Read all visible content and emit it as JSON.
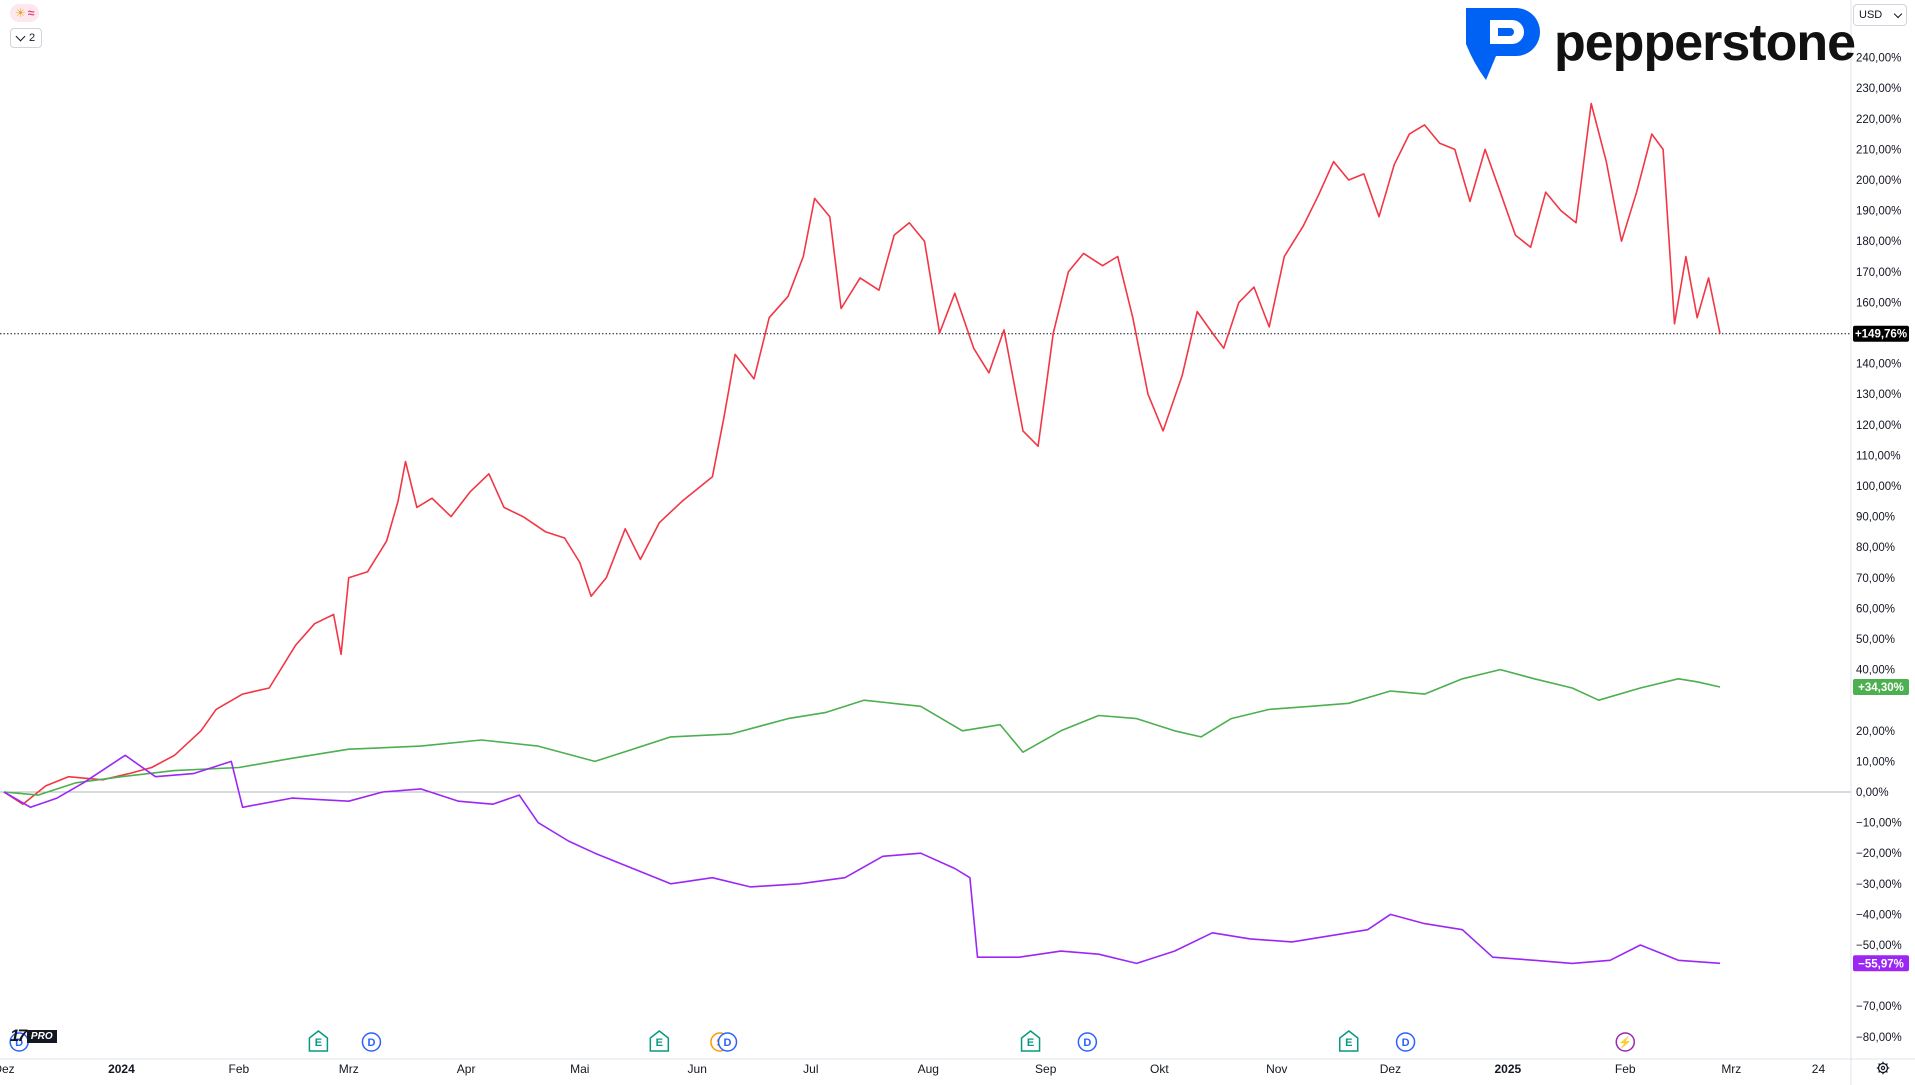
{
  "header": {
    "indicator_badge_sun": "☀",
    "indicator_badge_wave": "≈",
    "collapse_count": "2",
    "brand": "pepperstone",
    "currency": "USD"
  },
  "footer": {
    "tv_mark": "17",
    "tv_pro": "PRO"
  },
  "colors": {
    "red": "#f23645",
    "green": "#4caf50",
    "purple": "#9c27f5",
    "grid": "#b2b5be",
    "dotted": "#131722",
    "brand_blue": "#0062f5"
  },
  "chart_data": {
    "type": "line",
    "y_unit": "%",
    "ylim": [
      -85,
      250
    ],
    "y_ticks": [
      {
        "v": 240,
        "label": "240,00%"
      },
      {
        "v": 230,
        "label": "230,00%"
      },
      {
        "v": 220,
        "label": "220,00%"
      },
      {
        "v": 210,
        "label": "210,00%"
      },
      {
        "v": 200,
        "label": "200,00%"
      },
      {
        "v": 190,
        "label": "190,00%"
      },
      {
        "v": 180,
        "label": "180,00%"
      },
      {
        "v": 170,
        "label": "170,00%"
      },
      {
        "v": 160,
        "label": "160,00%"
      },
      {
        "v": 140,
        "label": "140,00%"
      },
      {
        "v": 130,
        "label": "130,00%"
      },
      {
        "v": 120,
        "label": "120,00%"
      },
      {
        "v": 110,
        "label": "110,00%"
      },
      {
        "v": 100,
        "label": "100,00%"
      },
      {
        "v": 90,
        "label": "90,00%"
      },
      {
        "v": 80,
        "label": "80,00%"
      },
      {
        "v": 70,
        "label": "70,00%"
      },
      {
        "v": 60,
        "label": "60,00%"
      },
      {
        "v": 50,
        "label": "50,00%"
      },
      {
        "v": 40,
        "label": "40,00%"
      },
      {
        "v": 20,
        "label": "20,00%"
      },
      {
        "v": 10,
        "label": "10,00%"
      },
      {
        "v": 0,
        "label": "0,00%"
      },
      {
        "v": -10,
        "label": "−10,00%"
      },
      {
        "v": -20,
        "label": "−20,00%"
      },
      {
        "v": -30,
        "label": "−30,00%"
      },
      {
        "v": -40,
        "label": "−40,00%"
      },
      {
        "v": -50,
        "label": "−50,00%"
      },
      {
        "v": -70,
        "label": "−70,00%"
      },
      {
        "v": -80,
        "label": "−80,00%"
      }
    ],
    "x_range": [
      "2023-12-01",
      "2025-03-28"
    ],
    "x_ticks": [
      {
        "date": "2023-12-01",
        "label": "Dez",
        "bold": false
      },
      {
        "date": "2024-01-01",
        "label": "2024",
        "bold": true
      },
      {
        "date": "2024-02-01",
        "label": "Feb",
        "bold": false
      },
      {
        "date": "2024-03-01",
        "label": "Mrz",
        "bold": false
      },
      {
        "date": "2024-04-01",
        "label": "Apr",
        "bold": false
      },
      {
        "date": "2024-05-01",
        "label": "Mai",
        "bold": false
      },
      {
        "date": "2024-06-01",
        "label": "Jun",
        "bold": false
      },
      {
        "date": "2024-07-01",
        "label": "Jul",
        "bold": false
      },
      {
        "date": "2024-08-01",
        "label": "Aug",
        "bold": false
      },
      {
        "date": "2024-09-01",
        "label": "Sep",
        "bold": false
      },
      {
        "date": "2024-10-01",
        "label": "Okt",
        "bold": false
      },
      {
        "date": "2024-11-01",
        "label": "Nov",
        "bold": false
      },
      {
        "date": "2024-12-01",
        "label": "Dez",
        "bold": false
      },
      {
        "date": "2025-01-01",
        "label": "2025",
        "bold": true
      },
      {
        "date": "2025-02-01",
        "label": "Feb",
        "bold": false
      },
      {
        "date": "2025-03-01",
        "label": "Mrz",
        "bold": false
      },
      {
        "date": "2025-03-24",
        "label": "24",
        "bold": false
      }
    ],
    "events": [
      {
        "date": "2023-12-05",
        "letter": "D",
        "color": "#2962ff"
      },
      {
        "date": "2024-02-22",
        "letter": "E",
        "color": "#089981"
      },
      {
        "date": "2024-03-07",
        "letter": "D",
        "color": "#2962ff"
      },
      {
        "date": "2024-05-22",
        "letter": "E",
        "color": "#089981"
      },
      {
        "date": "2024-06-07",
        "letter": "S",
        "color": "#ff9800"
      },
      {
        "date": "2024-06-09",
        "letter": "D",
        "color": "#2962ff"
      },
      {
        "date": "2024-08-28",
        "letter": "E",
        "color": "#089981"
      },
      {
        "date": "2024-09-12",
        "letter": "D",
        "color": "#2962ff"
      },
      {
        "date": "2024-11-20",
        "letter": "E",
        "color": "#089981"
      },
      {
        "date": "2024-12-05",
        "letter": "D",
        "color": "#2962ff"
      },
      {
        "date": "2025-02-01",
        "letter": "⚡",
        "color": "#9c27b0"
      }
    ],
    "last_value_dotted": 149.76,
    "series": [
      {
        "color": "#f23645",
        "last_label": "+149,76%",
        "points": [
          [
            "2023-12-01",
            0
          ],
          [
            "2023-12-06",
            -4
          ],
          [
            "2023-12-12",
            2
          ],
          [
            "2023-12-18",
            5
          ],
          [
            "2023-12-27",
            4
          ],
          [
            "2024-01-03",
            6
          ],
          [
            "2024-01-09",
            8
          ],
          [
            "2024-01-15",
            12
          ],
          [
            "2024-01-22",
            20
          ],
          [
            "2024-01-26",
            27
          ],
          [
            "2024-02-02",
            32
          ],
          [
            "2024-02-09",
            34
          ],
          [
            "2024-02-16",
            48
          ],
          [
            "2024-02-21",
            55
          ],
          [
            "2024-02-26",
            58
          ],
          [
            "2024-02-28",
            45
          ],
          [
            "2024-03-01",
            70
          ],
          [
            "2024-03-06",
            72
          ],
          [
            "2024-03-11",
            82
          ],
          [
            "2024-03-14",
            95
          ],
          [
            "2024-03-16",
            108
          ],
          [
            "2024-03-19",
            93
          ],
          [
            "2024-03-23",
            96
          ],
          [
            "2024-03-28",
            90
          ],
          [
            "2024-04-02",
            98
          ],
          [
            "2024-04-07",
            104
          ],
          [
            "2024-04-11",
            93
          ],
          [
            "2024-04-16",
            90
          ],
          [
            "2024-04-22",
            85
          ],
          [
            "2024-04-27",
            83
          ],
          [
            "2024-05-01",
            75
          ],
          [
            "2024-05-04",
            64
          ],
          [
            "2024-05-08",
            70
          ],
          [
            "2024-05-13",
            86
          ],
          [
            "2024-05-17",
            76
          ],
          [
            "2024-05-22",
            88
          ],
          [
            "2024-05-28",
            95
          ],
          [
            "2024-06-02",
            100
          ],
          [
            "2024-06-05",
            103
          ],
          [
            "2024-06-08",
            122
          ],
          [
            "2024-06-11",
            143
          ],
          [
            "2024-06-16",
            135
          ],
          [
            "2024-06-20",
            155
          ],
          [
            "2024-06-25",
            162
          ],
          [
            "2024-06-29",
            175
          ],
          [
            "2024-07-02",
            194
          ],
          [
            "2024-07-06",
            188
          ],
          [
            "2024-07-09",
            158
          ],
          [
            "2024-07-14",
            168
          ],
          [
            "2024-07-19",
            164
          ],
          [
            "2024-07-23",
            182
          ],
          [
            "2024-07-27",
            186
          ],
          [
            "2024-07-31",
            180
          ],
          [
            "2024-08-04",
            150
          ],
          [
            "2024-08-08",
            163
          ],
          [
            "2024-08-13",
            145
          ],
          [
            "2024-08-17",
            137
          ],
          [
            "2024-08-21",
            151
          ],
          [
            "2024-08-26",
            118
          ],
          [
            "2024-08-30",
            113
          ],
          [
            "2024-09-03",
            150
          ],
          [
            "2024-09-07",
            170
          ],
          [
            "2024-09-11",
            176
          ],
          [
            "2024-09-16",
            172
          ],
          [
            "2024-09-20",
            175
          ],
          [
            "2024-09-24",
            155
          ],
          [
            "2024-09-28",
            130
          ],
          [
            "2024-10-02",
            118
          ],
          [
            "2024-10-07",
            136
          ],
          [
            "2024-10-11",
            157
          ],
          [
            "2024-10-15",
            150
          ],
          [
            "2024-10-18",
            145
          ],
          [
            "2024-10-22",
            160
          ],
          [
            "2024-10-26",
            165
          ],
          [
            "2024-10-30",
            152
          ],
          [
            "2024-11-03",
            175
          ],
          [
            "2024-11-08",
            185
          ],
          [
            "2024-11-12",
            195
          ],
          [
            "2024-11-16",
            206
          ],
          [
            "2024-11-20",
            200
          ],
          [
            "2024-11-24",
            202
          ],
          [
            "2024-11-28",
            188
          ],
          [
            "2024-12-02",
            205
          ],
          [
            "2024-12-06",
            215
          ],
          [
            "2024-12-10",
            218
          ],
          [
            "2024-12-14",
            212
          ],
          [
            "2024-12-18",
            210
          ],
          [
            "2024-12-22",
            193
          ],
          [
            "2024-12-26",
            210
          ],
          [
            "2024-12-30",
            196
          ],
          [
            "2025-01-03",
            182
          ],
          [
            "2025-01-07",
            178
          ],
          [
            "2025-01-11",
            196
          ],
          [
            "2025-01-15",
            190
          ],
          [
            "2025-01-19",
            186
          ],
          [
            "2025-01-23",
            225
          ],
          [
            "2025-01-27",
            206
          ],
          [
            "2025-01-31",
            180
          ],
          [
            "2025-02-04",
            196
          ],
          [
            "2025-02-08",
            215
          ],
          [
            "2025-02-11",
            210
          ],
          [
            "2025-02-14",
            153
          ],
          [
            "2025-02-17",
            175
          ],
          [
            "2025-02-20",
            155
          ],
          [
            "2025-02-23",
            168
          ],
          [
            "2025-02-26",
            149.76
          ]
        ]
      },
      {
        "color": "#4caf50",
        "last_label": "+34,30%",
        "points": [
          [
            "2023-12-01",
            0
          ],
          [
            "2023-12-10",
            -1
          ],
          [
            "2023-12-20",
            3
          ],
          [
            "2024-01-01",
            5
          ],
          [
            "2024-01-15",
            7
          ],
          [
            "2024-02-01",
            8
          ],
          [
            "2024-02-15",
            11
          ],
          [
            "2024-03-01",
            14
          ],
          [
            "2024-03-20",
            15
          ],
          [
            "2024-04-05",
            17
          ],
          [
            "2024-04-20",
            15
          ],
          [
            "2024-05-05",
            10
          ],
          [
            "2024-05-15",
            14
          ],
          [
            "2024-05-25",
            18
          ],
          [
            "2024-06-10",
            19
          ],
          [
            "2024-06-25",
            24
          ],
          [
            "2024-07-05",
            26
          ],
          [
            "2024-07-15",
            30
          ],
          [
            "2024-07-30",
            28
          ],
          [
            "2024-08-10",
            20
          ],
          [
            "2024-08-20",
            22
          ],
          [
            "2024-08-26",
            13
          ],
          [
            "2024-09-05",
            20
          ],
          [
            "2024-09-15",
            25
          ],
          [
            "2024-09-25",
            24
          ],
          [
            "2024-10-05",
            20
          ],
          [
            "2024-10-12",
            18
          ],
          [
            "2024-10-20",
            24
          ],
          [
            "2024-10-30",
            27
          ],
          [
            "2024-11-10",
            28
          ],
          [
            "2024-11-20",
            29
          ],
          [
            "2024-12-01",
            33
          ],
          [
            "2024-12-10",
            32
          ],
          [
            "2024-12-20",
            37
          ],
          [
            "2024-12-30",
            40
          ],
          [
            "2025-01-08",
            37
          ],
          [
            "2025-01-18",
            34
          ],
          [
            "2025-01-25",
            30
          ],
          [
            "2025-02-05",
            34
          ],
          [
            "2025-02-15",
            37
          ],
          [
            "2025-02-20",
            36
          ],
          [
            "2025-02-26",
            34.3
          ]
        ]
      },
      {
        "color": "#9c27f5",
        "last_label": "−55,97%",
        "points": [
          [
            "2023-12-01",
            0
          ],
          [
            "2023-12-08",
            -5
          ],
          [
            "2023-12-15",
            -2
          ],
          [
            "2023-12-22",
            3
          ],
          [
            "2024-01-02",
            12
          ],
          [
            "2024-01-10",
            5
          ],
          [
            "2024-01-20",
            6
          ],
          [
            "2024-01-30",
            10
          ],
          [
            "2024-02-02",
            -5
          ],
          [
            "2024-02-15",
            -2
          ],
          [
            "2024-03-01",
            -3
          ],
          [
            "2024-03-10",
            0
          ],
          [
            "2024-03-20",
            1
          ],
          [
            "2024-03-30",
            -3
          ],
          [
            "2024-04-08",
            -4
          ],
          [
            "2024-04-15",
            -1
          ],
          [
            "2024-04-20",
            -10
          ],
          [
            "2024-04-28",
            -16
          ],
          [
            "2024-05-05",
            -20
          ],
          [
            "2024-05-15",
            -25
          ],
          [
            "2024-05-25",
            -30
          ],
          [
            "2024-06-05",
            -28
          ],
          [
            "2024-06-15",
            -31
          ],
          [
            "2024-06-28",
            -30
          ],
          [
            "2024-07-10",
            -28
          ],
          [
            "2024-07-20",
            -21
          ],
          [
            "2024-07-30",
            -20
          ],
          [
            "2024-08-08",
            -25
          ],
          [
            "2024-08-12",
            -28
          ],
          [
            "2024-08-14",
            -54
          ],
          [
            "2024-08-25",
            -54
          ],
          [
            "2024-09-05",
            -52
          ],
          [
            "2024-09-15",
            -53
          ],
          [
            "2024-09-25",
            -56
          ],
          [
            "2024-10-05",
            -52
          ],
          [
            "2024-10-15",
            -46
          ],
          [
            "2024-10-25",
            -48
          ],
          [
            "2024-11-05",
            -49
          ],
          [
            "2024-11-15",
            -47
          ],
          [
            "2024-11-25",
            -45
          ],
          [
            "2024-12-01",
            -40
          ],
          [
            "2024-12-10",
            -43
          ],
          [
            "2024-12-20",
            -45
          ],
          [
            "2024-12-28",
            -54
          ],
          [
            "2025-01-08",
            -55
          ],
          [
            "2025-01-18",
            -56
          ],
          [
            "2025-01-28",
            -55
          ],
          [
            "2025-02-05",
            -50
          ],
          [
            "2025-02-15",
            -55
          ],
          [
            "2025-02-26",
            -55.97
          ]
        ]
      }
    ]
  }
}
